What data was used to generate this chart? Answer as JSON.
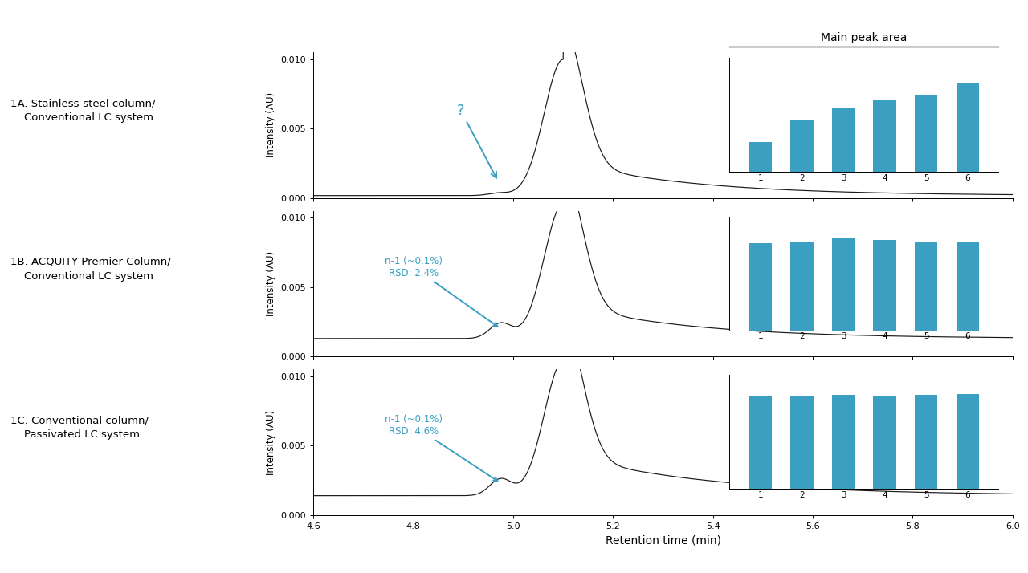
{
  "xlabel": "Retention time (min)",
  "ylabel": "Intensity (AU)",
  "xlim": [
    4.6,
    6.0
  ],
  "ylim": [
    0.0,
    0.0105
  ],
  "yticks": [
    0.0,
    0.005,
    0.01
  ],
  "ytick_labels": [
    "0.000",
    "0.005",
    "0.010"
  ],
  "xticks": [
    4.6,
    4.8,
    5.0,
    5.2,
    5.4,
    5.6,
    5.8,
    6.0
  ],
  "xtick_labels": [
    "4.6",
    "4.8",
    "5.0",
    "5.2",
    "5.4",
    "5.6",
    "5.8",
    "6.0"
  ],
  "panel_labels": [
    "1A. Stainless-steel column/\n    Conventional LC system",
    "1B. ACQUITY Premier Column/\n    Conventional LC system",
    "1C. Conventional column/\n    Passivated LC system"
  ],
  "bar_color": "#3a9fc0",
  "main_peak_title": "Main peak area",
  "bar_values_A": [
    0.3,
    0.52,
    0.65,
    0.72,
    0.77,
    0.9
  ],
  "bar_values_B": [
    0.88,
    0.9,
    0.93,
    0.91,
    0.9,
    0.89
  ],
  "bar_values_C": [
    0.93,
    0.94,
    0.95,
    0.93,
    0.95,
    0.96
  ],
  "line_color": "#1a1a1a",
  "bg_color": "#ffffff",
  "annotation_color": "#3a9fc0",
  "fig_width": 12.8,
  "fig_height": 7.14
}
